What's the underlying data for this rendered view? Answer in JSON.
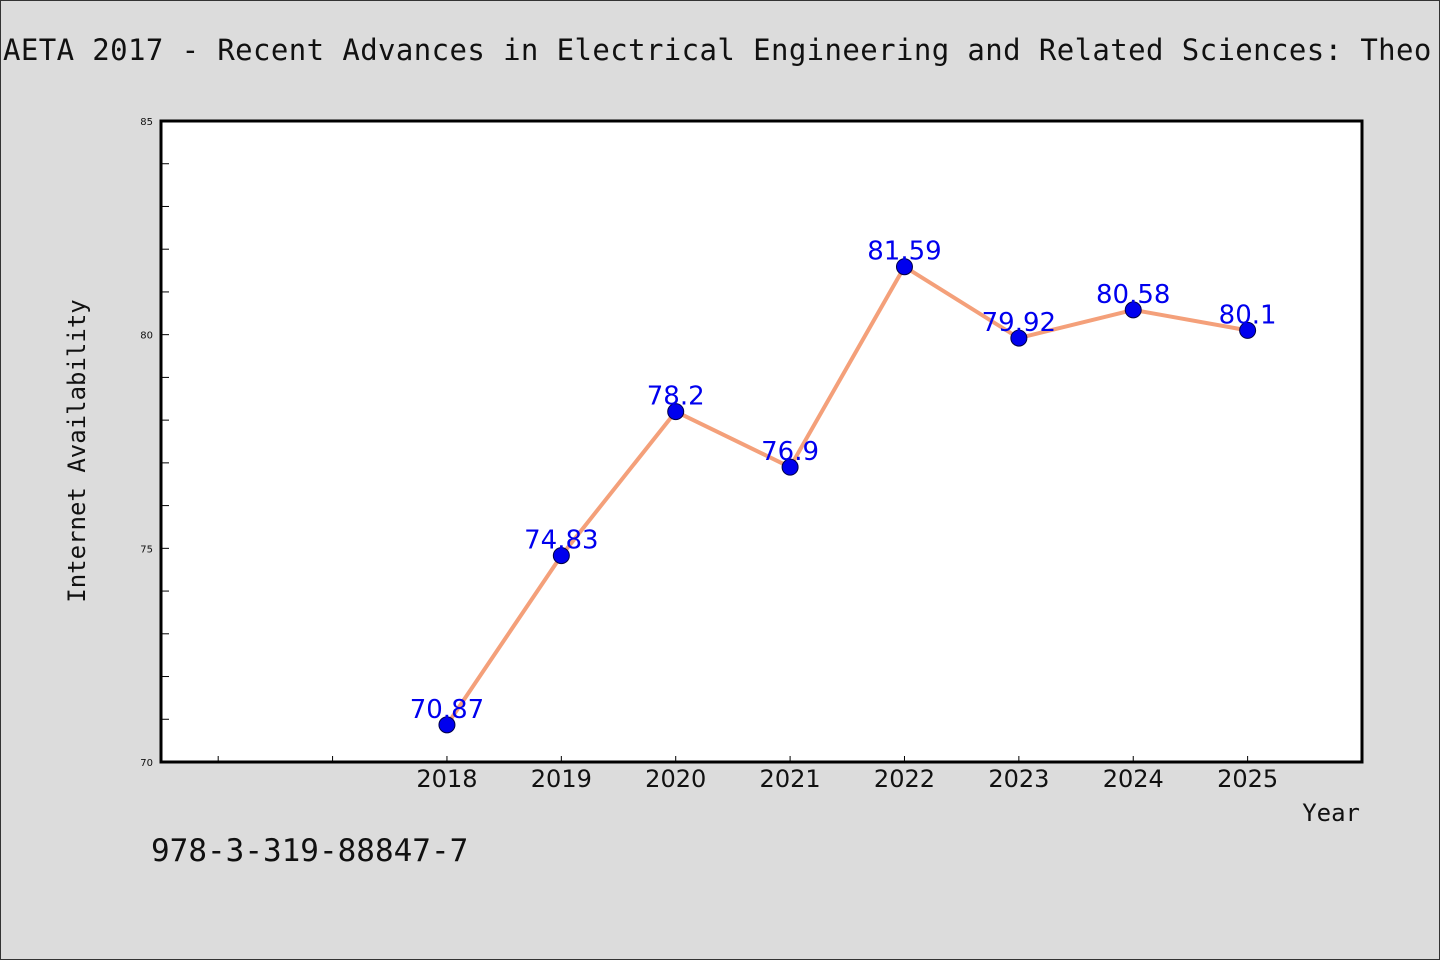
{
  "header": {
    "title": "AETA 2017 - Recent Advances in Electrical Engineering and Related Sciences: Theo"
  },
  "footer": {
    "code": "978-3-319-88847-7"
  },
  "colors": {
    "line": "#f4a07a",
    "marker": "#0000ee",
    "label": "#0000ee",
    "plot_background": "#ffffff",
    "page_background": "#dcdcdc"
  },
  "chart_data": {
    "type": "line",
    "title": "",
    "xlabel": "Year",
    "ylabel": "Internet Availability",
    "x": [
      2018,
      2019,
      2020,
      2021,
      2022,
      2023,
      2024,
      2025
    ],
    "x_tick_labels": [
      "2018",
      "2019",
      "2020",
      "2021",
      "2022",
      "2023",
      "2024",
      "2025"
    ],
    "xlim": [
      2015.5,
      2026
    ],
    "y_tick_labels": [
      "70",
      "75",
      "80",
      "85"
    ],
    "ylim": [
      70,
      85
    ],
    "series": [
      {
        "values": [
          70.87,
          74.83,
          78.2,
          76.9,
          81.59,
          79.92,
          80.58,
          80.1
        ],
        "data_labels": [
          "70.87",
          "74.83",
          "78.2",
          "76.9",
          "81.59",
          "79.92",
          "80.58",
          "80.1"
        ]
      }
    ],
    "grid": false,
    "legend": "none"
  }
}
